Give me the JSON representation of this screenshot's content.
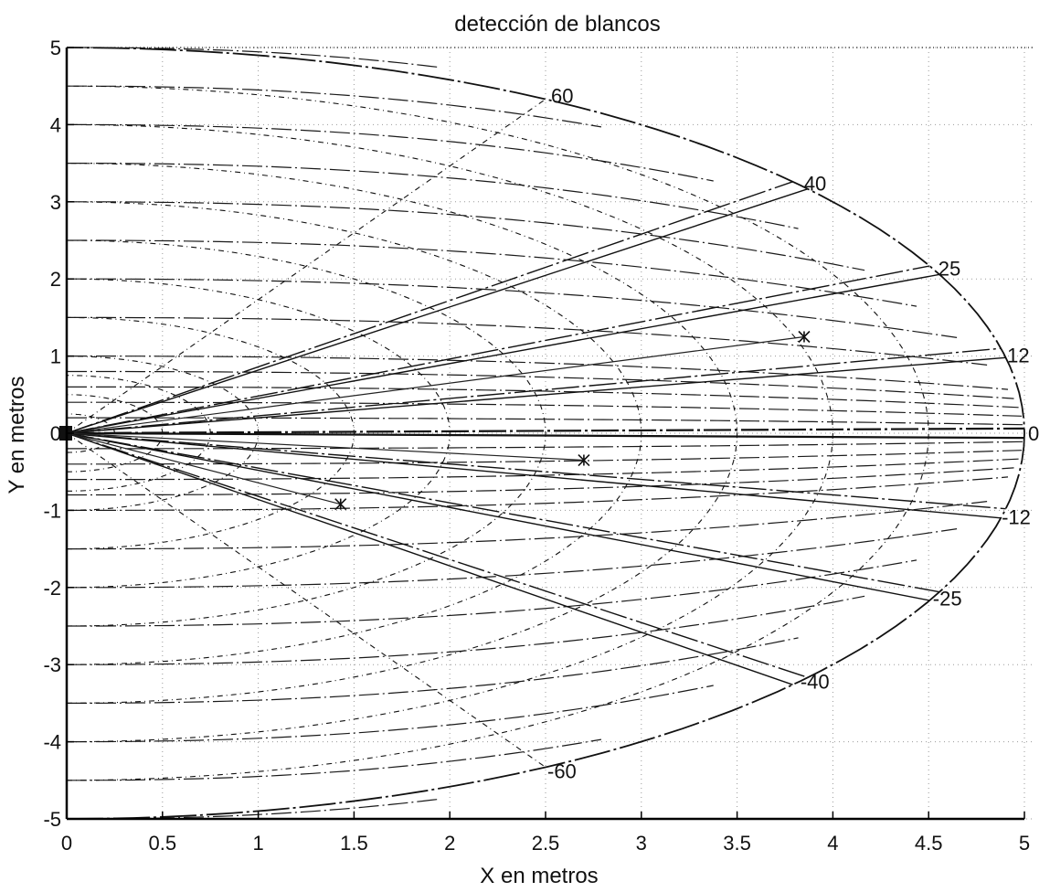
{
  "chart_data": {
    "type": "line",
    "title": "detección de blancos",
    "xlabel": "X en metros",
    "ylabel": "Y en metros",
    "xlim": [
      0,
      5
    ],
    "ylim": [
      -5,
      5
    ],
    "x_ticks": [
      "0",
      "0.5",
      "1",
      "1.5",
      "2",
      "2.5",
      "3",
      "3.5",
      "4",
      "4.5",
      "5"
    ],
    "y_ticks": [
      "5",
      "4",
      "3",
      "2",
      "1",
      "0",
      "-1",
      "-2",
      "-3",
      "-4",
      "-5"
    ],
    "grid": true,
    "range_max": 5,
    "range_rings": [
      0.25,
      0.5,
      0.75,
      1,
      1.5,
      2,
      2.5,
      3,
      3.5,
      4,
      4.5,
      5
    ],
    "offset_curves_y": [
      5,
      4.5,
      4,
      3.5,
      3,
      2.5,
      2,
      1.5,
      1,
      0.8,
      0.6,
      0.4,
      0.2,
      -0.2,
      -0.4,
      -0.6,
      -0.8,
      -1,
      -1.5,
      -2,
      -2.5,
      -3,
      -3.5,
      -4,
      -4.5,
      -5
    ],
    "angle_rays": [
      {
        "angle": 60,
        "label": "60"
      },
      {
        "angle": 40,
        "label": "40"
      },
      {
        "angle": 25,
        "label": "25"
      },
      {
        "angle": 12,
        "label": "12"
      },
      {
        "angle": 0,
        "label": "0"
      },
      {
        "angle": -12,
        "label": "-12"
      },
      {
        "angle": -25,
        "label": "-25"
      },
      {
        "angle": -40,
        "label": "-40"
      },
      {
        "angle": -60,
        "label": "-60"
      }
    ],
    "targets": [
      {
        "x": 3.85,
        "y": 1.25
      },
      {
        "x": 2.7,
        "y": -0.35
      },
      {
        "x": 1.43,
        "y": -0.92
      }
    ]
  }
}
